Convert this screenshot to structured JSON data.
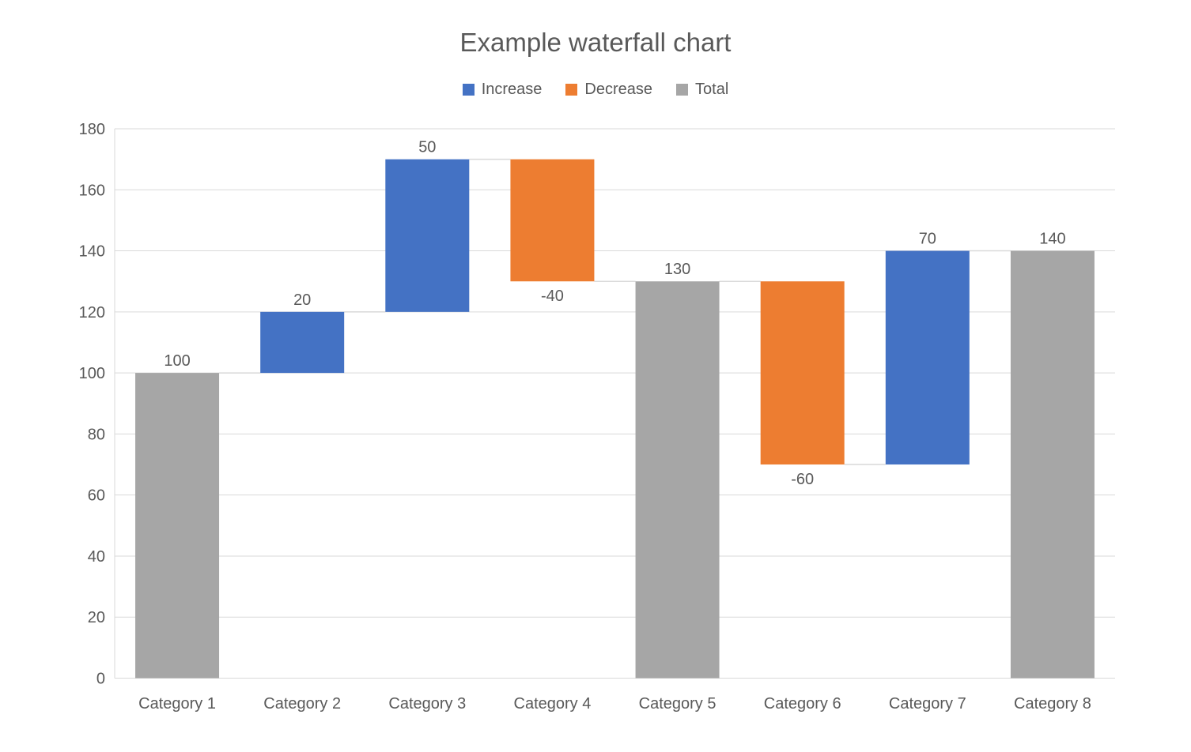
{
  "chart_data": {
    "type": "bar",
    "subtype": "waterfall",
    "title": "Example waterfall chart",
    "xlabel": "",
    "ylabel": "",
    "ylim": [
      0,
      180
    ],
    "ytick_step": 20,
    "yticks": [
      0,
      20,
      40,
      60,
      80,
      100,
      120,
      140,
      160,
      180
    ],
    "grid": true,
    "legend_position": "top",
    "connectors": true,
    "legend": [
      {
        "id": "increase",
        "label": "Increase",
        "color": "#4472C4"
      },
      {
        "id": "decrease",
        "label": "Decrease",
        "color": "#ED7D31"
      },
      {
        "id": "total",
        "label": "Total",
        "color": "#A6A6A6"
      }
    ],
    "categories": [
      "Category 1",
      "Category 2",
      "Category 3",
      "Category 4",
      "Category 5",
      "Category 6",
      "Category 7",
      "Category 8"
    ],
    "series": [
      {
        "category": "Category 1",
        "kind": "total",
        "value": 100,
        "base": 0,
        "top": 100,
        "label": "100"
      },
      {
        "category": "Category 2",
        "kind": "increase",
        "value": 20,
        "base": 100,
        "top": 120,
        "label": "20"
      },
      {
        "category": "Category 3",
        "kind": "increase",
        "value": 50,
        "base": 120,
        "top": 170,
        "label": "50"
      },
      {
        "category": "Category 4",
        "kind": "decrease",
        "value": -40,
        "base": 130,
        "top": 170,
        "label": "-40"
      },
      {
        "category": "Category 5",
        "kind": "total",
        "value": 130,
        "base": 0,
        "top": 130,
        "label": "130"
      },
      {
        "category": "Category 6",
        "kind": "decrease",
        "value": -60,
        "base": 70,
        "top": 130,
        "label": "-60"
      },
      {
        "category": "Category 7",
        "kind": "increase",
        "value": 70,
        "base": 70,
        "top": 140,
        "label": "70"
      },
      {
        "category": "Category 8",
        "kind": "total",
        "value": 140,
        "base": 0,
        "top": 140,
        "label": "140"
      }
    ]
  },
  "style": {
    "increase_color": "#4472C4",
    "decrease_color": "#ED7D31",
    "total_color": "#A6A6A6",
    "gridline_color": "#D9D9D9",
    "axis_line_color": "#D9D9D9",
    "connector_color": "#D9D9D9",
    "text_color": "#595959",
    "background_color": "#FFFFFF"
  }
}
